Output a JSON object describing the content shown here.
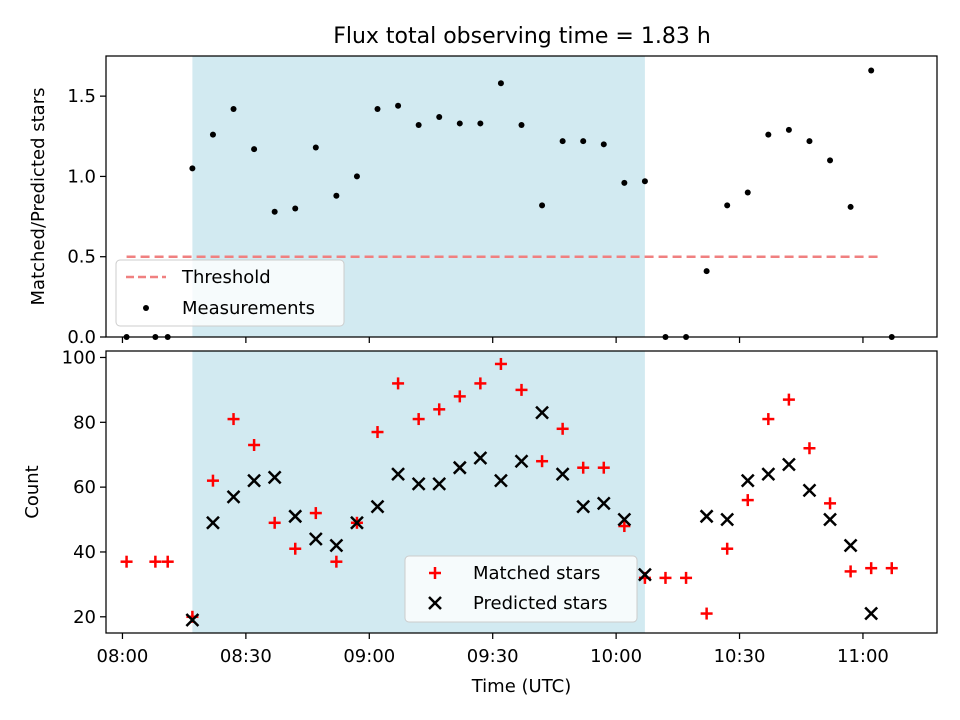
{
  "figure_title": "Flux total observing time = 1.83 h",
  "xlabel": "Time (UTC)",
  "xticks": [
    {
      "label": "08:00",
      "t": 0
    },
    {
      "label": "08:30",
      "t": 30
    },
    {
      "label": "09:00",
      "t": 60
    },
    {
      "label": "09:30",
      "t": 90
    },
    {
      "label": "10:00",
      "t": 120
    },
    {
      "label": "10:30",
      "t": 150
    },
    {
      "label": "11:00",
      "t": 180
    }
  ],
  "colors": {
    "shade": "#add8e6",
    "threshold": "#f08080",
    "measurement": "#000000",
    "matched": "#ff0000",
    "predicted": "#000000"
  },
  "chart_data": [
    {
      "type": "scatter",
      "title": "Flux total observing time = 1.83 h",
      "ylabel": "Matched/Predicted stars",
      "xlim": [
        "07:56",
        "11:18"
      ],
      "ylim": [
        0,
        1.75
      ],
      "yticks": [
        "0.0",
        "0.5",
        "1.0",
        "1.5"
      ],
      "shaded_interval": [
        "08:17",
        "10:07"
      ],
      "threshold": {
        "name": "Threshold",
        "value": 0.5,
        "x_range": [
          "08:01",
          "11:04"
        ]
      },
      "legend": [
        "Threshold",
        "Measurements"
      ],
      "legend_loc": "lower-left",
      "series": [
        {
          "name": "Measurements",
          "x": [
            "08:01",
            "08:08",
            "08:11",
            "08:17",
            "08:22",
            "08:27",
            "08:32",
            "08:37",
            "08:42",
            "08:47",
            "08:52",
            "08:57",
            "09:02",
            "09:07",
            "09:12",
            "09:17",
            "09:22",
            "09:27",
            "09:32",
            "09:37",
            "09:42",
            "09:47",
            "09:52",
            "09:57",
            "10:02",
            "10:07",
            "10:12",
            "10:17",
            "10:22",
            "10:27",
            "10:32",
            "10:37",
            "10:42",
            "10:47",
            "10:52",
            "10:57",
            "11:02",
            "11:07"
          ],
          "y": [
            0.0,
            0.0,
            0.0,
            1.05,
            1.26,
            1.42,
            1.17,
            0.78,
            0.8,
            1.18,
            0.88,
            1.0,
            1.42,
            1.44,
            1.32,
            1.37,
            1.33,
            1.33,
            1.58,
            1.32,
            0.82,
            1.22,
            1.22,
            1.2,
            0.96,
            0.97,
            0.0,
            0.0,
            0.41,
            0.82,
            0.9,
            1.26,
            1.29,
            1.22,
            1.1,
            0.81,
            1.66,
            0.0
          ]
        }
      ]
    },
    {
      "type": "scatter",
      "ylabel": "Count",
      "xlabel": "Time (UTC)",
      "ylim": [
        15,
        102
      ],
      "yticks": [
        "20",
        "40",
        "60",
        "80",
        "100"
      ],
      "shaded_interval": [
        "08:17",
        "10:07"
      ],
      "legend": [
        "Matched stars",
        "Predicted stars"
      ],
      "legend_loc": "lower-center",
      "series": [
        {
          "name": "Matched stars",
          "x": [
            "08:01",
            "08:08",
            "08:11",
            "08:17",
            "08:22",
            "08:27",
            "08:32",
            "08:37",
            "08:42",
            "08:47",
            "08:52",
            "08:57",
            "09:02",
            "09:07",
            "09:12",
            "09:17",
            "09:22",
            "09:27",
            "09:32",
            "09:37",
            "09:42",
            "09:47",
            "09:52",
            "09:57",
            "10:02",
            "10:07",
            "10:12",
            "10:17",
            "10:22",
            "10:27",
            "10:32",
            "10:37",
            "10:42",
            "10:47",
            "10:52",
            "10:57",
            "11:02",
            "11:07"
          ],
          "y": [
            37,
            37,
            37,
            20,
            62,
            81,
            73,
            49,
            41,
            52,
            37,
            49,
            77,
            92,
            81,
            84,
            88,
            92,
            98,
            90,
            68,
            78,
            66,
            66,
            48,
            32,
            32,
            32,
            21,
            41,
            56,
            81,
            87,
            72,
            55,
            34,
            35,
            35
          ]
        },
        {
          "name": "Predicted stars",
          "x": [
            "08:17",
            "08:22",
            "08:27",
            "08:32",
            "08:37",
            "08:42",
            "08:47",
            "08:52",
            "08:57",
            "09:02",
            "09:07",
            "09:12",
            "09:17",
            "09:22",
            "09:27",
            "09:32",
            "09:37",
            "09:42",
            "09:47",
            "09:52",
            "09:57",
            "10:02",
            "10:07",
            "10:22",
            "10:27",
            "10:32",
            "10:37",
            "10:42",
            "10:47",
            "10:52",
            "10:57",
            "11:02"
          ],
          "y": [
            19,
            49,
            57,
            62,
            63,
            51,
            44,
            42,
            49,
            54,
            64,
            61,
            61,
            66,
            69,
            62,
            68,
            83,
            64,
            54,
            55,
            50,
            33,
            51,
            50,
            62,
            64,
            67,
            59,
            50,
            42,
            21
          ]
        }
      ]
    }
  ]
}
